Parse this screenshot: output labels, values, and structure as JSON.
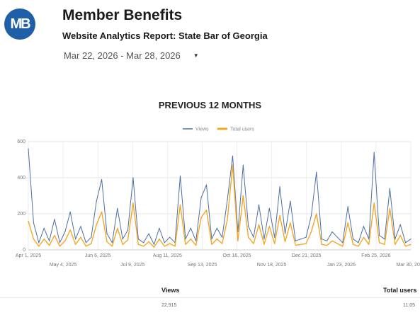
{
  "header": {
    "logo_text": "MB",
    "title": "Member Benefits",
    "subtitle": "Website Analytics Report: State Bar of Georgia",
    "date_range": "Mar 22, 2026 - Mar 28, 2026"
  },
  "colors": {
    "brand_blue": "#1f5fa8",
    "views_line": "#4a6fa5",
    "users_line": "#f5a623"
  },
  "section_title": "PREVIOUS 12 MONTHS",
  "chart_data": {
    "type": "line",
    "legend": [
      "Views",
      "Total users"
    ],
    "legend_position": "top-center",
    "ylim": [
      0,
      600
    ],
    "yticks": [
      "0",
      "200",
      "400",
      "600"
    ],
    "grid": true,
    "x_tick_labels_top": [
      "Apr 1, 2025",
      "Jun 6, 2025",
      "Aug 11, 2025",
      "Oct 16, 2025",
      "Dec 21, 2025",
      "Feb 25, 2026"
    ],
    "x_tick_labels_bottom": [
      "May 4, 2025",
      "Jul 9, 2025",
      "Sep 13, 2025",
      "Nov 18, 2025",
      "Jan 23, 2026",
      "Mar 30, 2026"
    ],
    "x": [
      "2025-04-01",
      "2025-04-06",
      "2025-04-11",
      "2025-04-16",
      "2025-04-21",
      "2025-04-26",
      "2025-05-01",
      "2025-05-06",
      "2025-05-11",
      "2025-05-16",
      "2025-05-21",
      "2025-05-26",
      "2025-05-31",
      "2025-06-05",
      "2025-06-10",
      "2025-06-15",
      "2025-06-20",
      "2025-06-25",
      "2025-06-30",
      "2025-07-05",
      "2025-07-10",
      "2025-07-15",
      "2025-07-20",
      "2025-07-25",
      "2025-07-30",
      "2025-08-04",
      "2025-08-09",
      "2025-08-14",
      "2025-08-19",
      "2025-08-24",
      "2025-08-29",
      "2025-09-03",
      "2025-09-08",
      "2025-09-13",
      "2025-09-18",
      "2025-09-23",
      "2025-09-28",
      "2025-10-03",
      "2025-10-08",
      "2025-10-13",
      "2025-10-18",
      "2025-10-23",
      "2025-10-28",
      "2025-11-02",
      "2025-11-07",
      "2025-11-12",
      "2025-11-17",
      "2025-11-22",
      "2025-11-27",
      "2025-12-02",
      "2025-12-07",
      "2025-12-12",
      "2025-12-17",
      "2025-12-22",
      "2025-12-27",
      "2026-01-01",
      "2026-01-06",
      "2026-01-11",
      "2026-01-16",
      "2026-01-21",
      "2026-01-26",
      "2026-01-31",
      "2026-02-05",
      "2026-02-10",
      "2026-02-15",
      "2026-02-20",
      "2026-02-25",
      "2026-03-02",
      "2026-03-07",
      "2026-03-12",
      "2026-03-17",
      "2026-03-22",
      "2026-03-27",
      "2026-03-30"
    ],
    "series": [
      {
        "name": "Views",
        "values": [
          560,
          150,
          40,
          120,
          50,
          170,
          40,
          100,
          210,
          60,
          130,
          40,
          70,
          270,
          390,
          90,
          40,
          230,
          60,
          110,
          400,
          60,
          40,
          90,
          30,
          120,
          40,
          70,
          40,
          410,
          60,
          120,
          50,
          290,
          360,
          60,
          120,
          70,
          280,
          520,
          100,
          470,
          130,
          70,
          250,
          60,
          230,
          70,
          350,
          90,
          270,
          50,
          60,
          70,
          190,
          430,
          60,
          50,
          100,
          70,
          40,
          240,
          60,
          40,
          130,
          60,
          540,
          80,
          60,
          340,
          60,
          140,
          40,
          60
        ],
        "color": "#4a6fa5"
      },
      {
        "name": "Total users",
        "values": [
          160,
          60,
          20,
          60,
          25,
          80,
          20,
          50,
          110,
          30,
          70,
          20,
          35,
          140,
          210,
          45,
          20,
          120,
          30,
          55,
          260,
          30,
          20,
          45,
          15,
          60,
          20,
          35,
          20,
          250,
          30,
          60,
          25,
          180,
          220,
          30,
          60,
          35,
          170,
          470,
          50,
          300,
          70,
          35,
          140,
          30,
          130,
          35,
          190,
          45,
          150,
          25,
          30,
          35,
          100,
          200,
          30,
          25,
          50,
          35,
          20,
          150,
          30,
          20,
          70,
          30,
          260,
          40,
          30,
          230,
          30,
          80,
          20,
          30
        ],
        "color": "#f5a623"
      }
    ]
  },
  "summary": {
    "views_label": "Views",
    "views_value": "22,915",
    "users_label": "Total users",
    "users_value": "11,05"
  }
}
